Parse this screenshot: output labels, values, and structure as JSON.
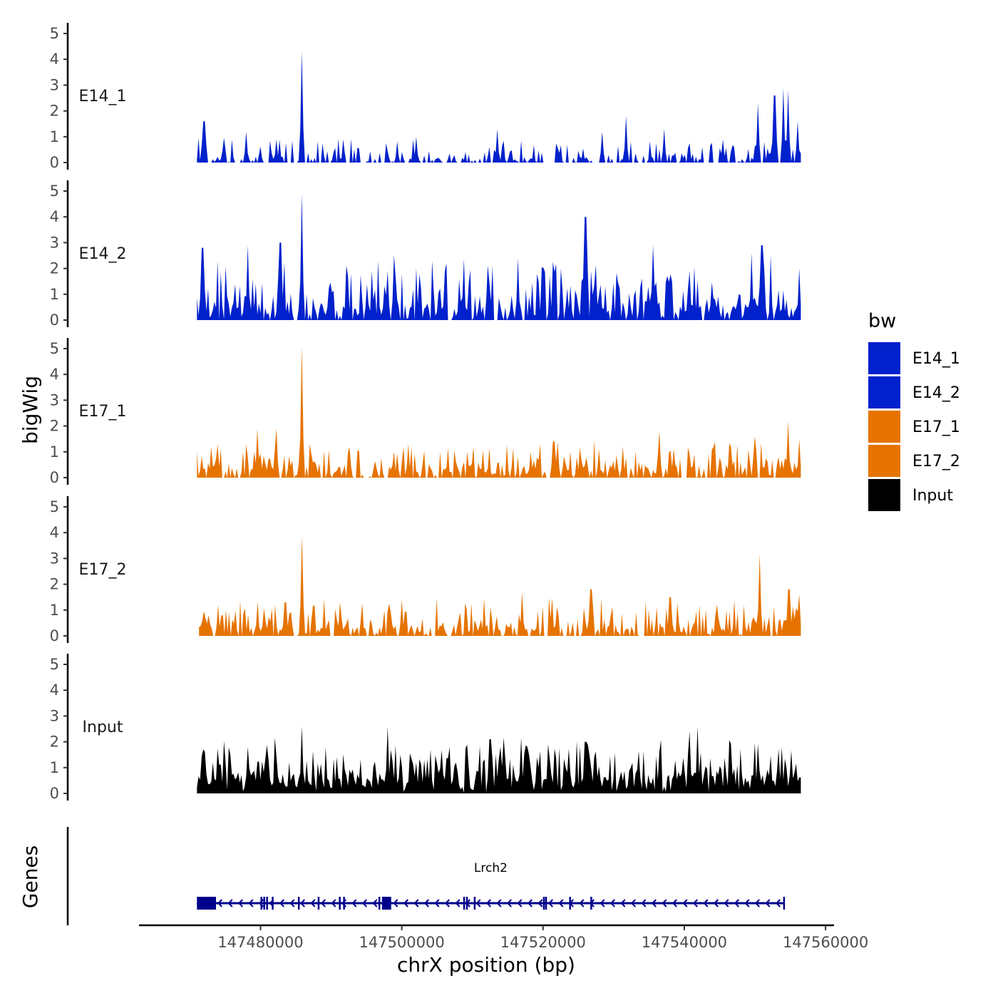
{
  "chart_data": {
    "type": "area",
    "title": "",
    "ylabel": "bigWig",
    "xlabel": "chrX position (bp)",
    "genes_label": "Genes",
    "xlim": [
      147463000,
      147561000
    ],
    "ylim": [
      0,
      5
    ],
    "y_ticks": [
      "0",
      "1",
      "2",
      "3",
      "4",
      "5"
    ],
    "x_ticks": [
      {
        "value": 147480000,
        "label": "147480000"
      },
      {
        "value": 147500000,
        "label": "147500000"
      },
      {
        "value": 147520000,
        "label": "147520000"
      },
      {
        "value": 147540000,
        "label": "147540000"
      },
      {
        "value": 147560000,
        "label": "147560000"
      }
    ],
    "legend": {
      "title": "bw",
      "placement": "right",
      "entries": [
        {
          "name": "E14_1",
          "color": "#0021CC"
        },
        {
          "name": "E14_2",
          "color": "#0021CC"
        },
        {
          "name": "E17_1",
          "color": "#E67300"
        },
        {
          "name": "E17_2",
          "color": "#E67300"
        },
        {
          "name": "Input",
          "color": "#000000"
        }
      ]
    },
    "series": [
      {
        "name": "E14_1",
        "color": "#0021CC",
        "x_start": 147471000,
        "x_end": 147556500,
        "baseline": 0.15,
        "noise": 0.55,
        "density": 0.55,
        "peaks": [
          {
            "x": 147472000,
            "y": 1.6
          },
          {
            "x": 147478000,
            "y": 1.2
          },
          {
            "x": 147485800,
            "y": 4.3
          },
          {
            "x": 147482300,
            "y": 0.9
          },
          {
            "x": 147502000,
            "y": 1.0
          },
          {
            "x": 147513500,
            "y": 1.3
          },
          {
            "x": 147528300,
            "y": 1.2
          },
          {
            "x": 147531800,
            "y": 1.8
          },
          {
            "x": 147537200,
            "y": 1.3
          },
          {
            "x": 147550500,
            "y": 2.3
          },
          {
            "x": 147552800,
            "y": 2.6
          },
          {
            "x": 147554000,
            "y": 2.9
          },
          {
            "x": 147554700,
            "y": 2.8
          },
          {
            "x": 147556000,
            "y": 1.6
          }
        ],
        "gaps": [
          [
            147485900,
            147486500
          ],
          [
            147494000,
            147494800
          ],
          [
            147520000,
            147521800
          ]
        ]
      },
      {
        "name": "E14_2",
        "color": "#0021CC",
        "x_start": 147471000,
        "x_end": 147556500,
        "baseline": 0.5,
        "noise": 1.3,
        "density": 0.9,
        "peaks": [
          {
            "x": 147471800,
            "y": 2.8
          },
          {
            "x": 147478200,
            "y": 2.9
          },
          {
            "x": 147482800,
            "y": 3.0
          },
          {
            "x": 147485800,
            "y": 4.9
          },
          {
            "x": 147516500,
            "y": 2.4
          },
          {
            "x": 147526000,
            "y": 4.0
          },
          {
            "x": 147535600,
            "y": 2.9
          },
          {
            "x": 147549500,
            "y": 2.6
          },
          {
            "x": 147551000,
            "y": 2.9
          },
          {
            "x": 147556200,
            "y": 2.0
          }
        ],
        "gaps": [
          [
            147484600,
            147485300
          ],
          [
            147506500,
            147507100
          ],
          [
            147513000,
            147513600
          ]
        ]
      },
      {
        "name": "E17_1",
        "color": "#E67300",
        "x_start": 147471000,
        "x_end": 147556500,
        "baseline": 0.4,
        "noise": 0.7,
        "density": 0.8,
        "peaks": [
          {
            "x": 147473000,
            "y": 1.2
          },
          {
            "x": 147479500,
            "y": 1.9
          },
          {
            "x": 147482300,
            "y": 1.9
          },
          {
            "x": 147485800,
            "y": 5.1
          },
          {
            "x": 147501000,
            "y": 1.3
          },
          {
            "x": 147521500,
            "y": 1.4
          },
          {
            "x": 147536500,
            "y": 1.8
          },
          {
            "x": 147550000,
            "y": 1.6
          },
          {
            "x": 147554700,
            "y": 2.2
          },
          {
            "x": 147556300,
            "y": 1.5
          }
        ],
        "gaps": [
          [
            147494500,
            147495300
          ],
          [
            147539500,
            147540300
          ],
          [
            147497500,
            147498200
          ]
        ]
      },
      {
        "name": "E17_2",
        "color": "#E67300",
        "x_start": 147471300,
        "x_end": 147556500,
        "baseline": 0.35,
        "noise": 0.75,
        "density": 0.8,
        "peaks": [
          {
            "x": 147474000,
            "y": 1.2
          },
          {
            "x": 147483500,
            "y": 1.3
          },
          {
            "x": 147485800,
            "y": 3.9
          },
          {
            "x": 147491200,
            "y": 1.3
          },
          {
            "x": 147500000,
            "y": 1.4
          },
          {
            "x": 147517000,
            "y": 1.7
          },
          {
            "x": 147526800,
            "y": 1.8
          },
          {
            "x": 147538000,
            "y": 1.5
          },
          {
            "x": 147550600,
            "y": 3.2
          },
          {
            "x": 147554800,
            "y": 1.8
          },
          {
            "x": 147556200,
            "y": 1.6
          }
        ],
        "gaps": [
          [
            147473200,
            147473900
          ],
          [
            147484600,
            147485200
          ],
          [
            147506400,
            147507000
          ]
        ]
      },
      {
        "name": "Input",
        "color": "#000000",
        "x_start": 147471000,
        "x_end": 147556500,
        "baseline": 0.7,
        "noise": 1.0,
        "density": 1.0,
        "peaks": [
          {
            "x": 147485800,
            "y": 2.6
          },
          {
            "x": 147498000,
            "y": 2.6
          },
          {
            "x": 147512500,
            "y": 2.1
          },
          {
            "x": 147526000,
            "y": 2.0
          },
          {
            "x": 147540800,
            "y": 2.4
          },
          {
            "x": 147541800,
            "y": 2.6
          },
          {
            "x": 147553800,
            "y": 1.8
          }
        ],
        "gaps": []
      }
    ],
    "gene": {
      "name": "Lrch2",
      "strand": "-",
      "start": 147471000,
      "end": 147554200,
      "color": "#00008B",
      "exons": [
        {
          "start": 147471000,
          "end": 147473700
        },
        {
          "start": 147480000,
          "end": 147480150
        },
        {
          "start": 147480400,
          "end": 147480550
        },
        {
          "start": 147480800,
          "end": 147480950
        },
        {
          "start": 147481600,
          "end": 147481750
        },
        {
          "start": 147485300,
          "end": 147485400
        },
        {
          "start": 147488100,
          "end": 147488250
        },
        {
          "start": 147491100,
          "end": 147491200
        },
        {
          "start": 147491700,
          "end": 147491850
        },
        {
          "start": 147496700,
          "end": 147496850
        },
        {
          "start": 147497200,
          "end": 147498500
        },
        {
          "start": 147508700,
          "end": 147508850
        },
        {
          "start": 147509100,
          "end": 147509250
        },
        {
          "start": 147510200,
          "end": 147510300
        },
        {
          "start": 147520000,
          "end": 147520150
        },
        {
          "start": 147520300,
          "end": 147520450
        },
        {
          "start": 147523700,
          "end": 147523800
        },
        {
          "start": 147526700,
          "end": 147526800
        },
        {
          "start": 147554000,
          "end": 147554200
        }
      ]
    }
  }
}
